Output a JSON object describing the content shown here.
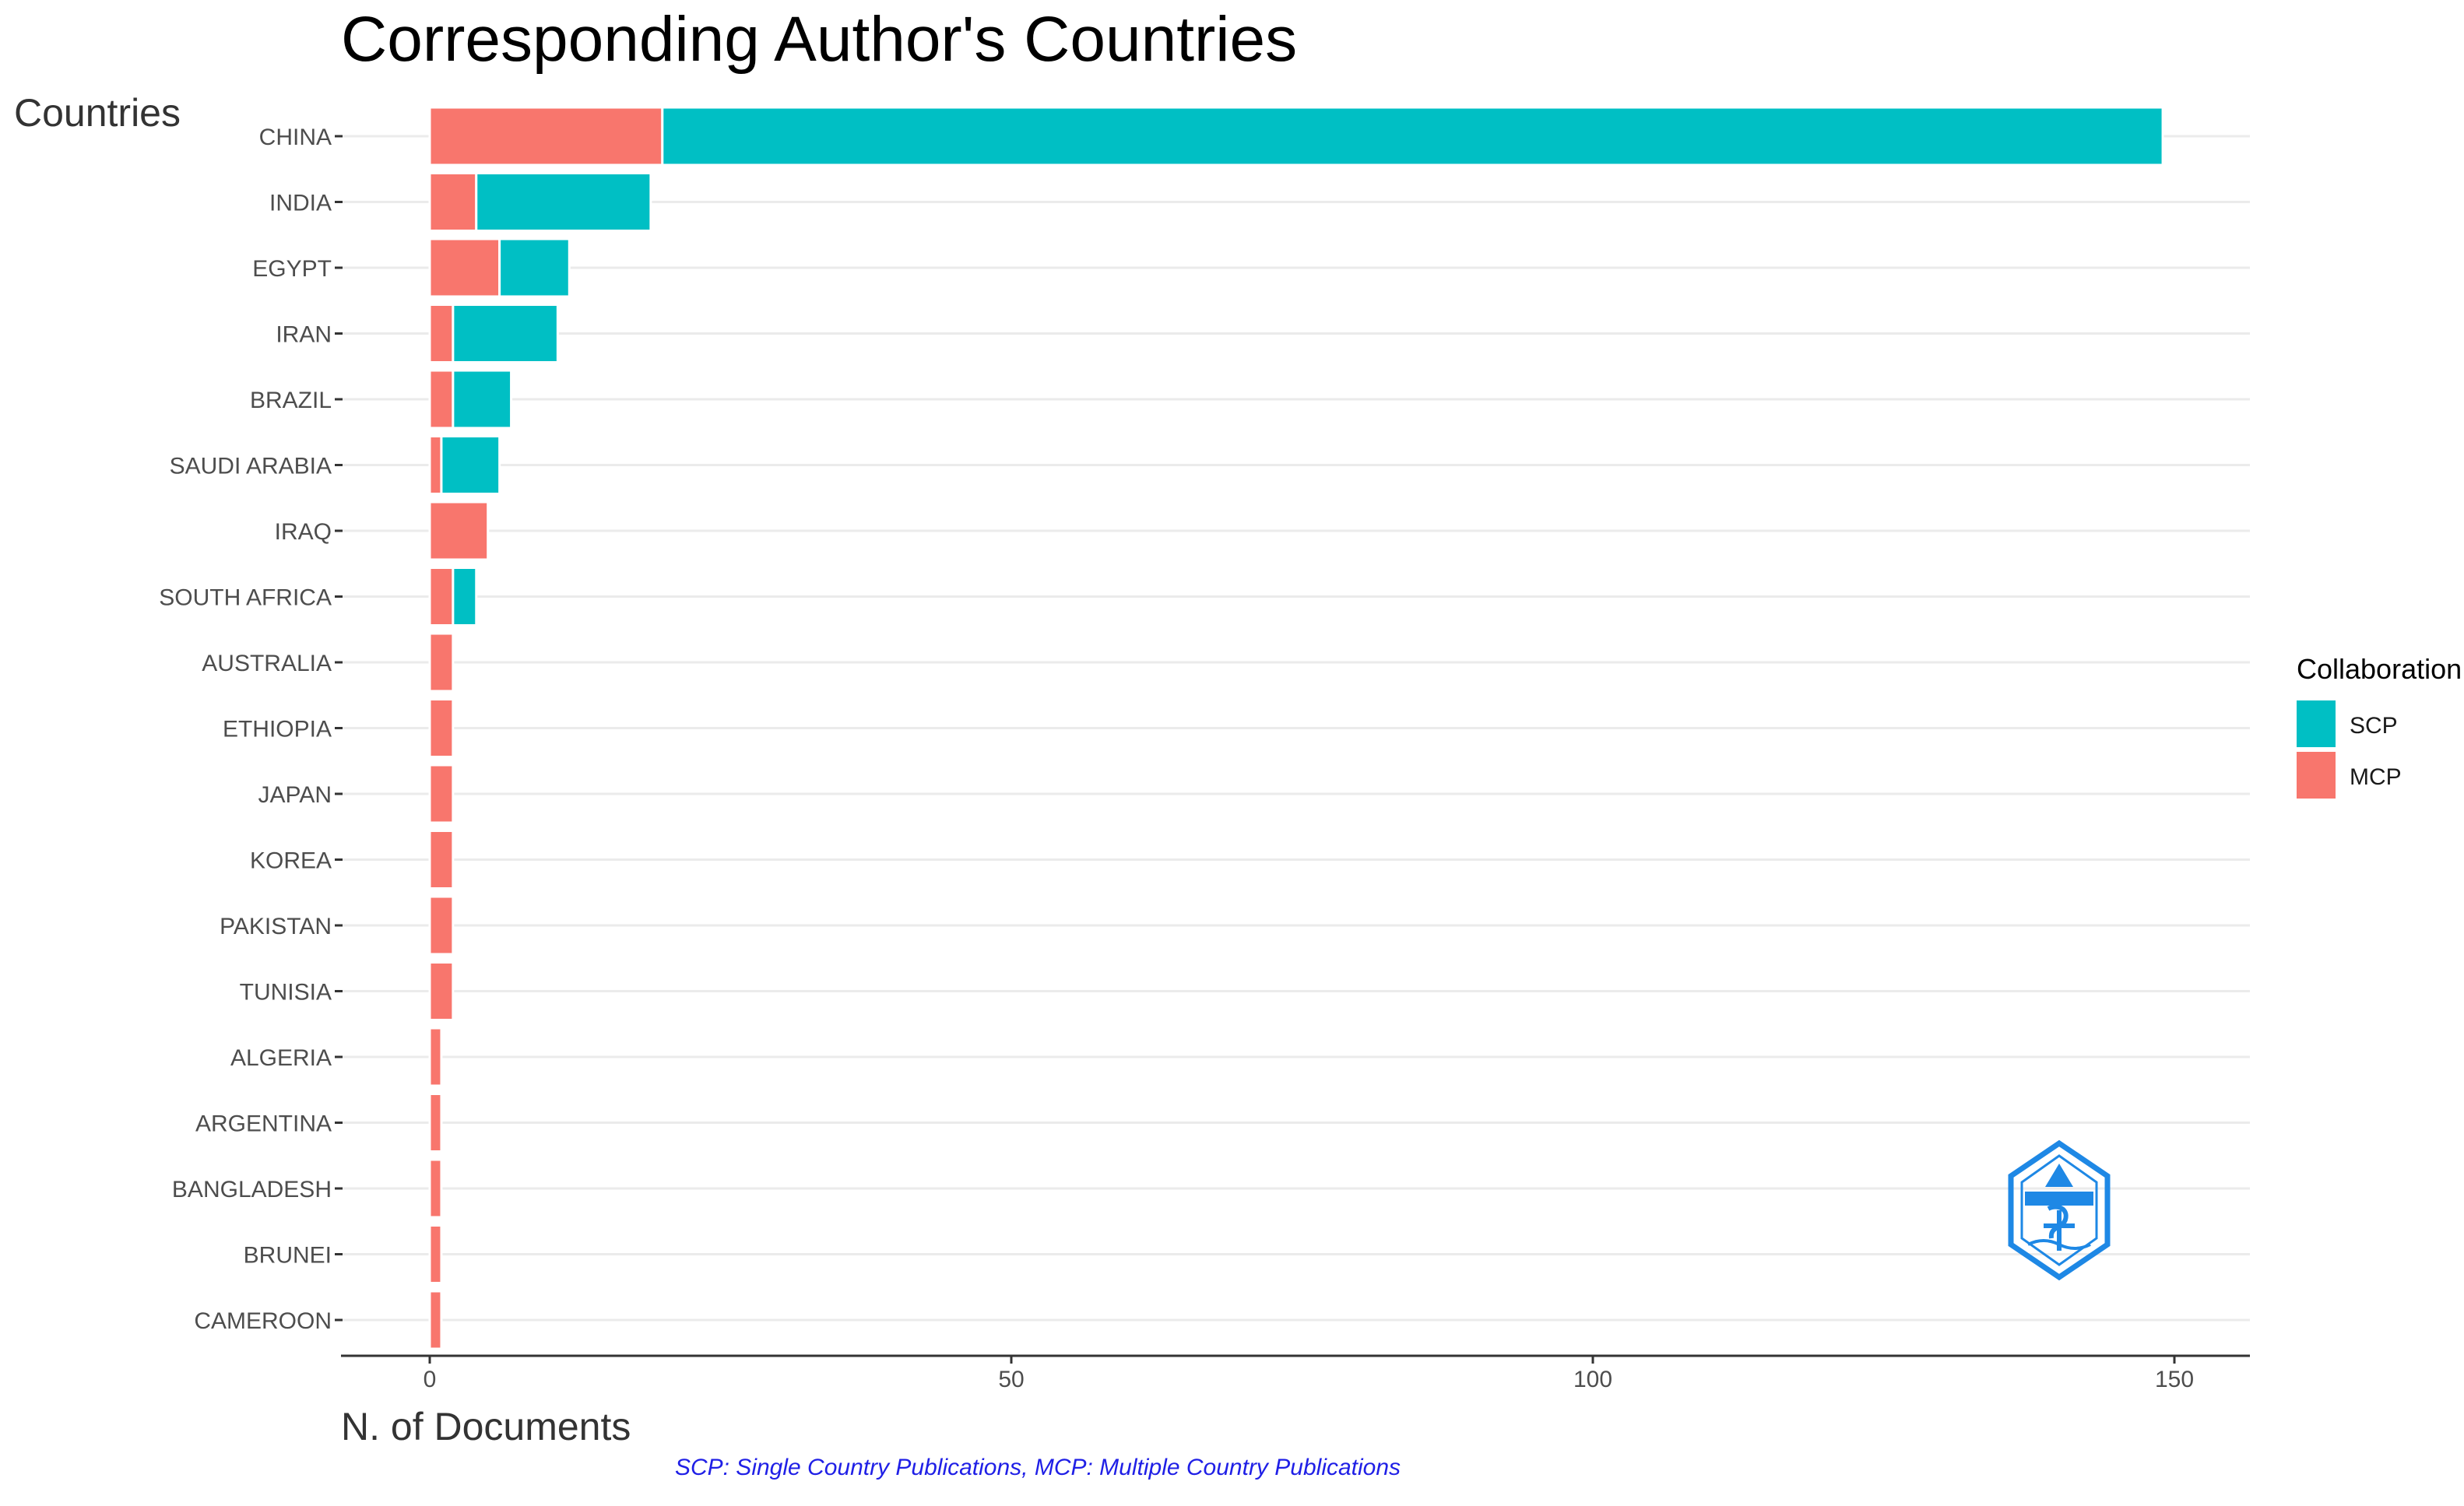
{
  "chart_data": {
    "type": "bar",
    "orientation": "horizontal",
    "stacked": true,
    "title": "Corresponding Author's Countries",
    "xlabel": "N. of Documents",
    "ylabel": "Countries",
    "xlim": [
      0,
      155
    ],
    "x_ticks": [
      0,
      50,
      100,
      150
    ],
    "categories": [
      "CHINA",
      "INDIA",
      "EGYPT",
      "IRAN",
      "BRAZIL",
      "SAUDI ARABIA",
      "IRAQ",
      "SOUTH AFRICA",
      "AUSTRALIA",
      "ETHIOPIA",
      "JAPAN",
      "KOREA",
      "PAKISTAN",
      "TUNISIA",
      "ALGERIA",
      "ARGENTINA",
      "BANGLADESH",
      "BRUNEI",
      "CAMEROON"
    ],
    "series": [
      {
        "name": "MCP",
        "color": "#f8766d",
        "values": [
          20,
          4,
          6,
          2,
          2,
          1,
          5,
          2,
          2,
          2,
          2,
          2,
          2,
          2,
          1,
          1,
          1,
          1,
          1
        ]
      },
      {
        "name": "SCP",
        "color": "#00bfc4",
        "values": [
          129,
          15,
          6,
          9,
          5,
          5,
          0,
          2,
          0,
          0,
          0,
          0,
          0,
          0,
          0,
          0,
          0,
          0,
          0
        ]
      }
    ],
    "legend": {
      "title": "Collaboration",
      "placement": "right",
      "entries": [
        {
          "label": "SCP",
          "color": "#00bfc4"
        },
        {
          "label": "MCP",
          "color": "#f8766d"
        }
      ]
    },
    "grid": true,
    "caption": "SCP: Single Country Publications, MCP: Multiple Country Publications"
  },
  "logo": {
    "name": "publisher-logo-icon",
    "color": "#1e88e5"
  }
}
